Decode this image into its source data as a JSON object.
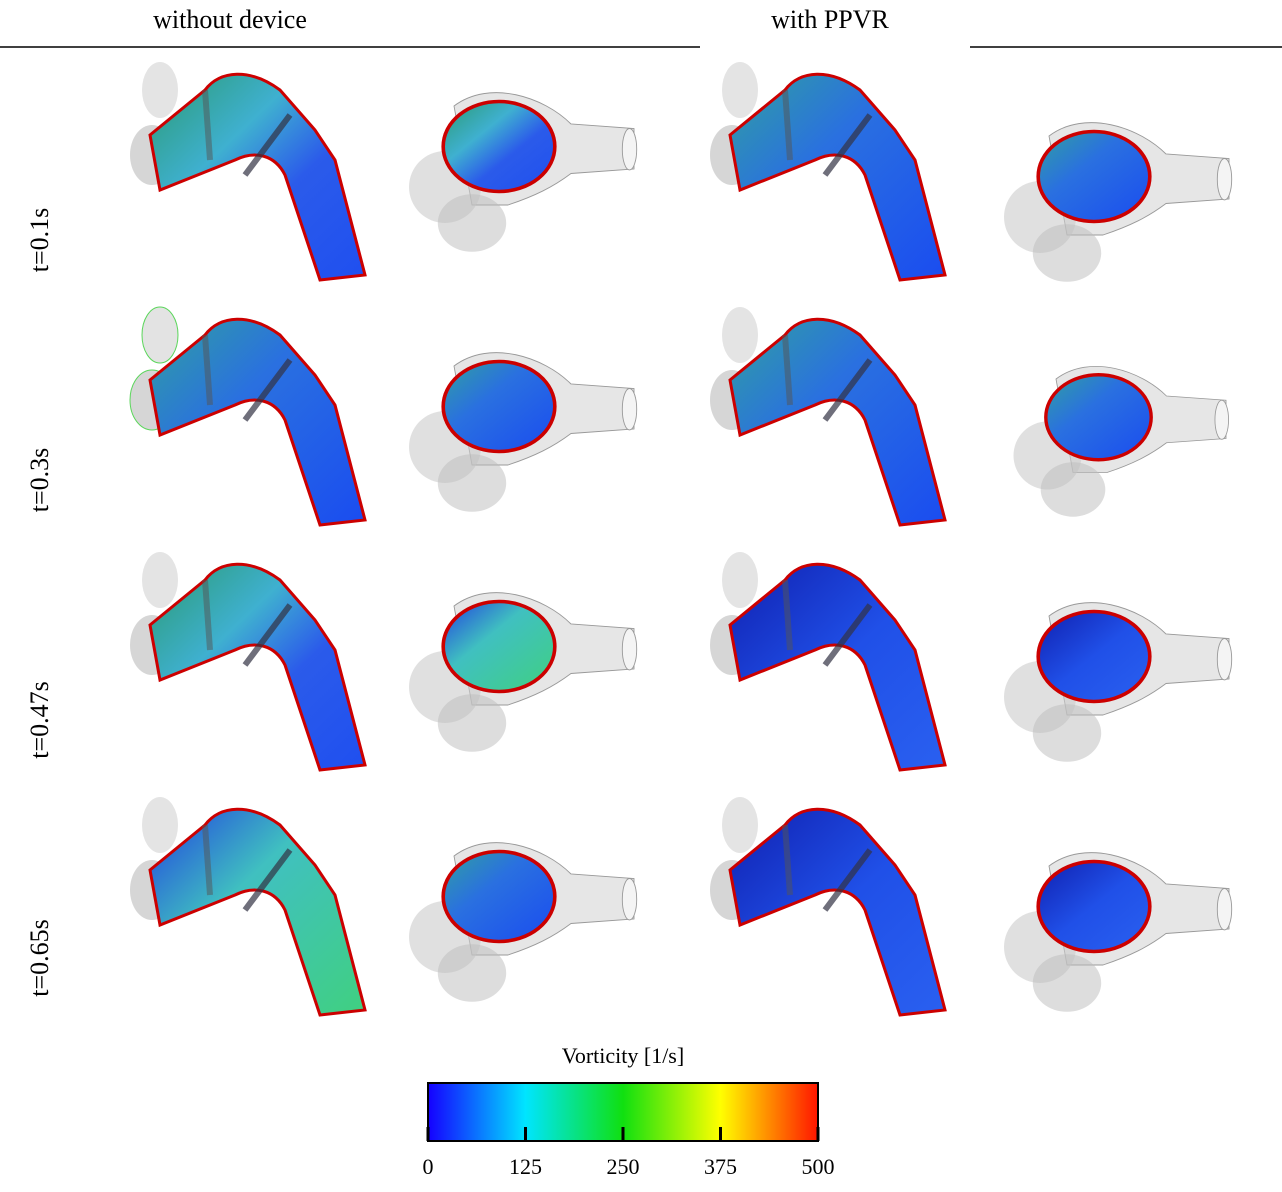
{
  "header": {
    "columns": [
      "without device",
      "with PPVR"
    ]
  },
  "rows": [
    "t=0.1s",
    "t=0.3s",
    "t=0.47s",
    "t=0.65s"
  ],
  "colorbar": {
    "title": "Vorticity [1/s]",
    "range": [
      0,
      500
    ],
    "ticks": [
      0,
      125,
      250,
      375,
      500
    ]
  }
}
